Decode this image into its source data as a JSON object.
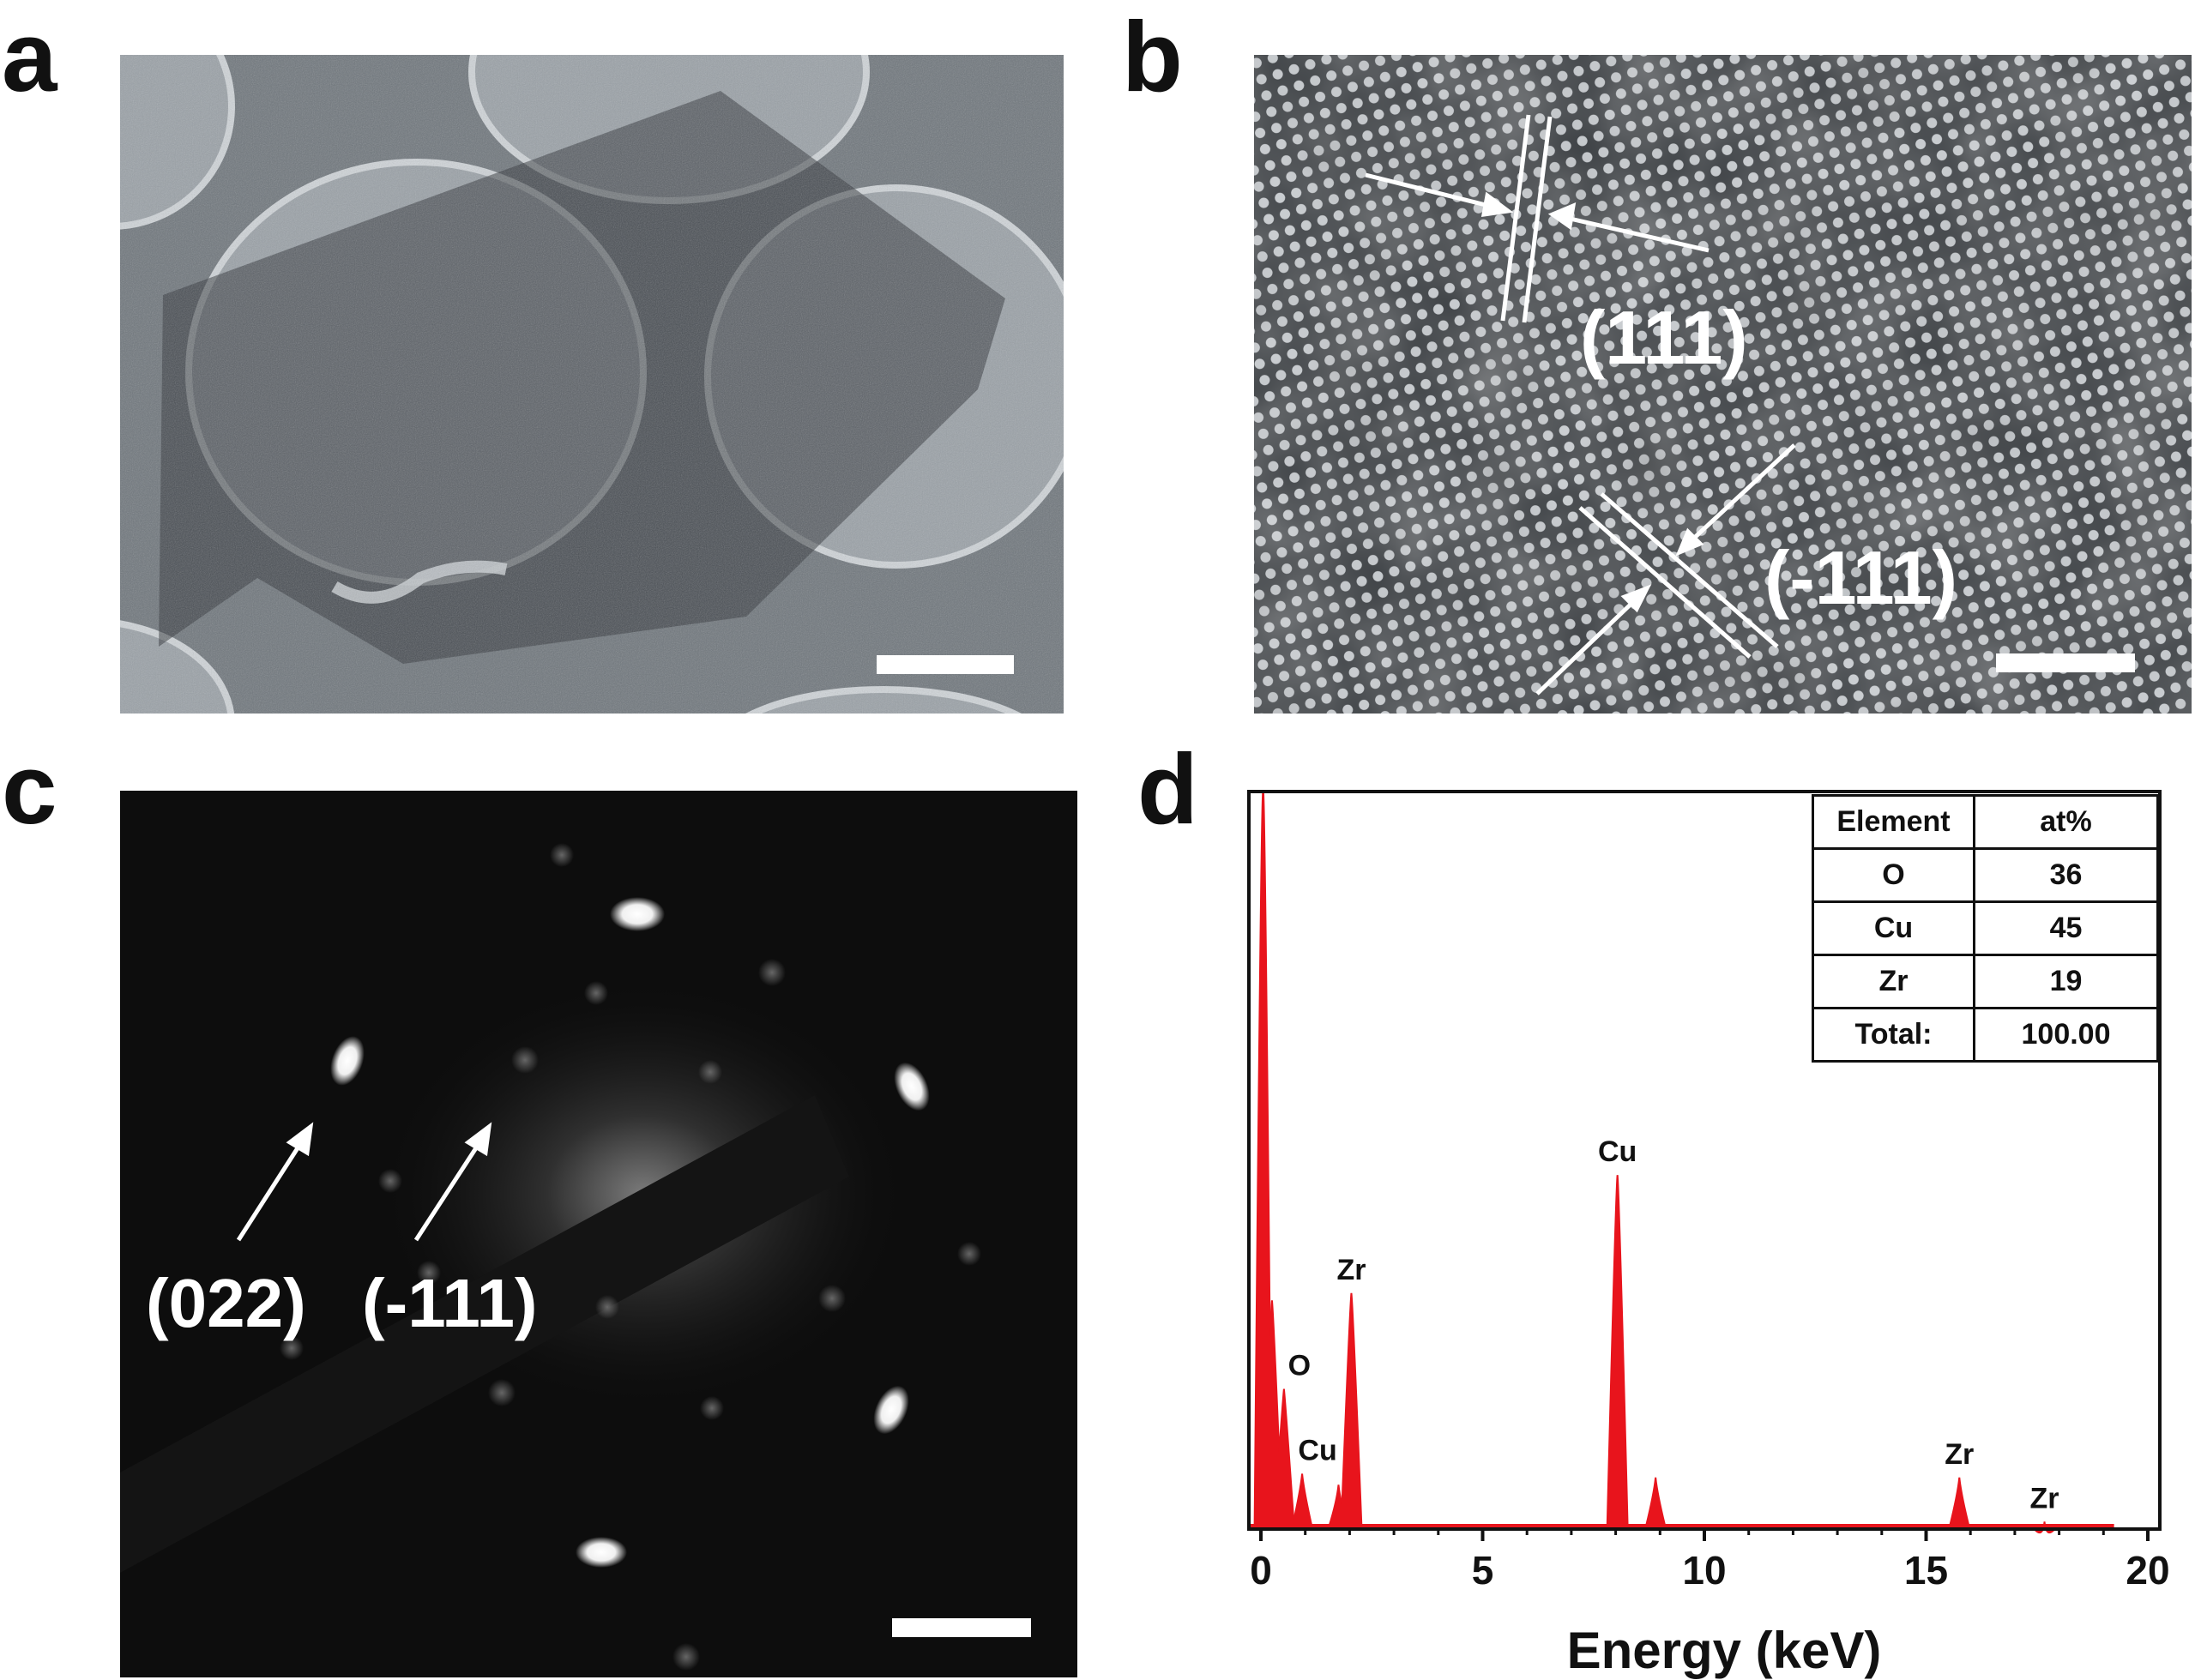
{
  "panels": {
    "a": {
      "letter": "a"
    },
    "b": {
      "letter": "b",
      "labels": [
        "(111)",
        "(-111)"
      ]
    },
    "c": {
      "letter": "c",
      "labels": [
        "(022)",
        "(-111)"
      ]
    },
    "d": {
      "letter": "d"
    }
  },
  "colors": {
    "spectrum": "#e8141c",
    "axis": "#111111"
  },
  "chart_data": {
    "type": "line",
    "xlabel": "Energy (keV)",
    "ylabel": "",
    "xlim": [
      0,
      20
    ],
    "x_ticks": [
      "0",
      "5",
      "10",
      "15",
      "20"
    ],
    "peaks": [
      {
        "x": 0.05,
        "y": 1.05
      },
      {
        "x": 0.25,
        "y": 0.31
      },
      {
        "x": 0.52,
        "y": 0.19,
        "label": "O"
      },
      {
        "x": 0.93,
        "y": 0.075,
        "label": "Cu"
      },
      {
        "x": 1.75,
        "y": 0.06
      },
      {
        "x": 2.04,
        "y": 0.32,
        "label": "Zr"
      },
      {
        "x": 8.04,
        "y": 0.48,
        "label": "Cu"
      },
      {
        "x": 8.9,
        "y": 0.07
      },
      {
        "x": 15.75,
        "y": 0.07,
        "label": "Zr"
      },
      {
        "x": 17.67,
        "y": 0.01,
        "label": "Zr"
      }
    ],
    "table": {
      "headers": [
        "Element",
        "at%"
      ],
      "rows": [
        [
          "O",
          "36"
        ],
        [
          "Cu",
          "45"
        ],
        [
          "Zr",
          "19"
        ],
        [
          "Total:",
          "100.00"
        ]
      ]
    }
  }
}
